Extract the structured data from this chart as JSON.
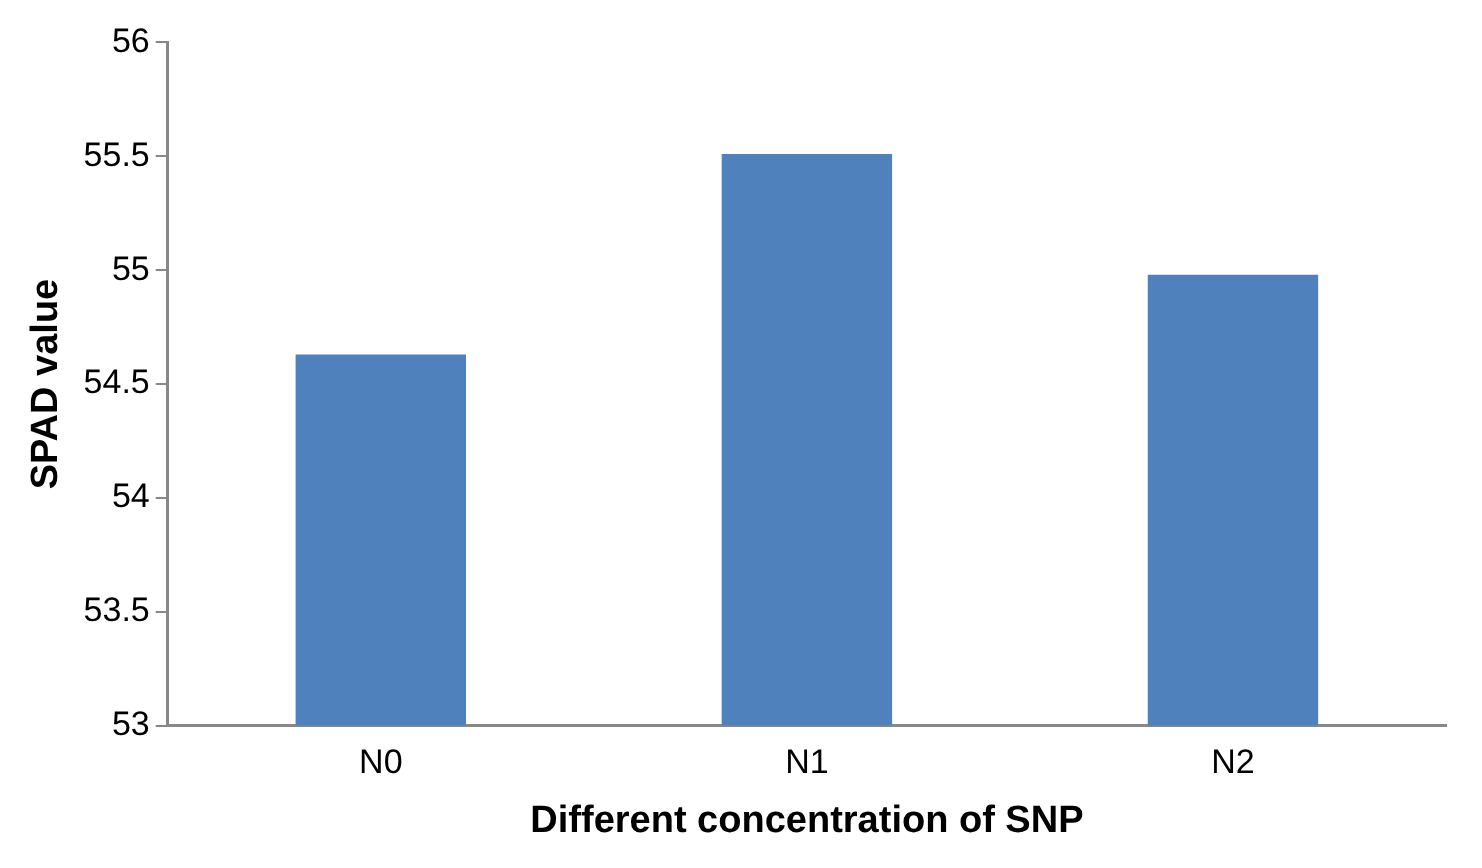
{
  "chart_data": {
    "type": "bar",
    "xlabel": "Different concentration of SNP",
    "ylabel": "SPAD value",
    "categories": [
      "N0",
      "N1",
      "N2"
    ],
    "values": [
      54.63,
      55.51,
      54.98
    ],
    "color": "#4f81bd",
    "ylim": [
      53,
      56
    ],
    "yticks": [
      53,
      53.5,
      54,
      54.5,
      55,
      55.5,
      56
    ],
    "grid": false,
    "legend": false
  }
}
